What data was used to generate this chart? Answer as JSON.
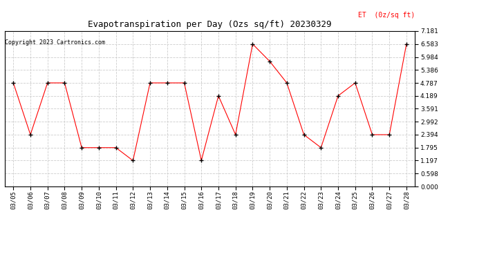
{
  "title": "Evapotranspiration per Day (Ozs sq/ft) 20230329",
  "copyright": "Copyright 2023 Cartronics.com",
  "legend_label": "ET  (0z/sq ft)",
  "dates": [
    "03/05",
    "03/06",
    "03/07",
    "03/08",
    "03/09",
    "03/10",
    "03/11",
    "03/12",
    "03/13",
    "03/14",
    "03/15",
    "03/16",
    "03/17",
    "03/18",
    "03/19",
    "03/20",
    "03/21",
    "03/22",
    "03/23",
    "03/24",
    "03/25",
    "03/26",
    "03/27",
    "03/28"
  ],
  "values": [
    4.787,
    2.394,
    4.787,
    4.787,
    1.795,
    1.795,
    1.795,
    1.197,
    4.787,
    4.787,
    4.787,
    1.197,
    4.189,
    2.394,
    6.583,
    5.784,
    4.787,
    2.394,
    1.795,
    4.189,
    4.787,
    2.394,
    2.394,
    6.583
  ],
  "line_color": "red",
  "marker_color": "black",
  "marker": "+",
  "yticks": [
    0.0,
    0.598,
    1.197,
    1.795,
    2.394,
    2.992,
    3.591,
    4.189,
    4.787,
    5.386,
    5.984,
    6.583,
    7.181
  ],
  "ylim": [
    0.0,
    7.181
  ],
  "grid_color": "#cccccc",
  "background_color": "white",
  "title_fontsize": 9,
  "copyright_fontsize": 6,
  "legend_color": "red",
  "legend_fontsize": 7,
  "tick_fontsize": 6.5
}
